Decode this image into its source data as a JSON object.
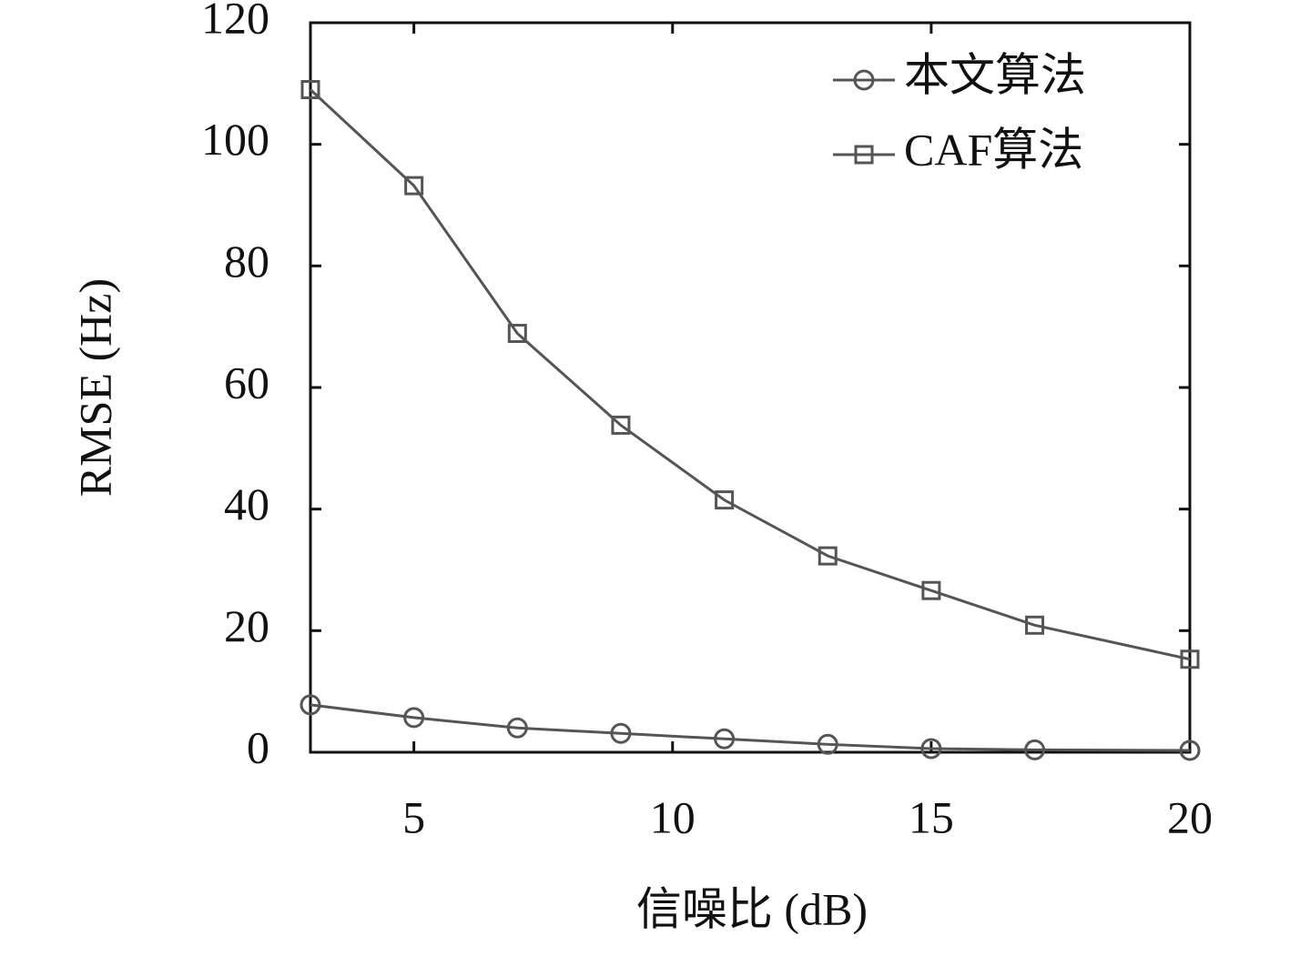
{
  "chart_data": {
    "type": "line",
    "x_label": "信噪比 (dB)",
    "y_label": "RMSE (Hz)",
    "x": [
      3,
      5,
      7,
      9,
      11,
      13,
      15,
      17,
      20
    ],
    "series": [
      {
        "name": "本文算法",
        "color": "#555555",
        "marker": "circle",
        "values": [
          7.8,
          5.7,
          4.0,
          3.1,
          2.2,
          1.3,
          0.6,
          0.4,
          0.3
        ]
      },
      {
        "name": "CAF算法",
        "color": "#555555",
        "marker": "square",
        "values": [
          109,
          93.2,
          68.9,
          53.8,
          41.5,
          32.3,
          26.6,
          20.9,
          15.3
        ]
      }
    ],
    "xlim": [
      3,
      20
    ],
    "xticks": [
      5,
      10,
      15,
      20
    ],
    "ylim": [
      0,
      120
    ],
    "yticks": [
      0,
      20,
      40,
      60,
      80,
      100,
      120
    ],
    "legend": "upper-right"
  }
}
